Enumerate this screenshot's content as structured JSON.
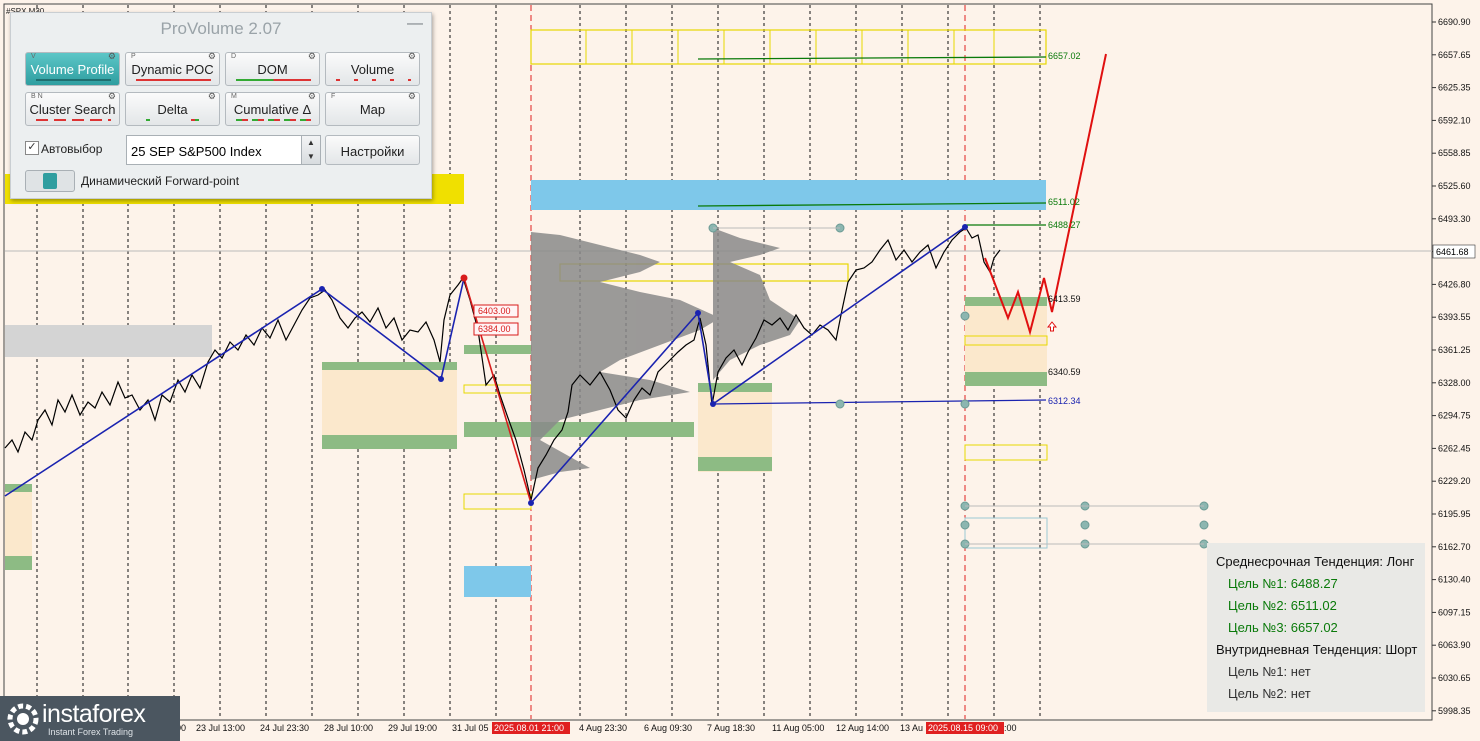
{
  "symbol": "#SPX,M30",
  "panel": {
    "title": "ProVolume 2.07",
    "minimize_glyph": "—",
    "buttons": [
      {
        "tag": "V",
        "label": "Volume Profile",
        "active": true
      },
      {
        "tag": "P",
        "label": "Dynamic POC",
        "active": false
      },
      {
        "tag": "D",
        "label": "DOM",
        "active": false
      },
      {
        "tag": "",
        "label": "Volume",
        "active": false
      },
      {
        "tag": "B N",
        "label": "Cluster Search",
        "active": false
      },
      {
        "tag": "",
        "label": "Delta",
        "active": false
      },
      {
        "tag": "M",
        "label": "Cumulative Δ",
        "active": false
      },
      {
        "tag": "F",
        "label": "Map",
        "active": false
      }
    ],
    "auto_select_label": "Автовыбор",
    "auto_select_checked": true,
    "instrument": "25 SEP S&P500 Index",
    "settings_label": "Настройки",
    "forward_point_label": "Динамический Forward-point",
    "accent_color": "#2f9ea0"
  },
  "price_axis": {
    "ticks": [
      "6690.90",
      "6657.65",
      "6625.35",
      "6592.10",
      "6558.85",
      "6525.60",
      "6493.30",
      "6460.05",
      "6426.80",
      "6393.55",
      "6361.25",
      "6328.00",
      "6294.75",
      "6262.45",
      "6229.20",
      "6195.95",
      "6162.70",
      "6130.40",
      "6097.15",
      "6063.90",
      "6030.65",
      "5998.35"
    ],
    "current_price": "6461.68"
  },
  "time_axis": {
    "labels": [
      "22 Jul 04:00",
      "23 Jul 13:00",
      "24 Jul 23:30",
      "28 Jul 10:00",
      "29 Jul 19:00",
      "31 Jul 05",
      "2025.08.01 21:00",
      "4 Aug 23:30",
      "6 Aug 09:30",
      "7 Aug 18:30",
      "11 Aug 05:00",
      "12 Aug 14:00",
      "13 Au",
      "2025.08.15 09:00",
      ":00"
    ]
  },
  "levels": {
    "l6657": "6657.02",
    "l6511": "6511.02",
    "l6488": "6488.27",
    "l6413": "6413.59",
    "l6340": "6340.59",
    "l6312": "6312.34",
    "l6403": "6403.00",
    "l6384": "6384.00"
  },
  "info": {
    "mid_trend": "Среднесрочная Тенденция: Лонг",
    "mid_target1": "Цель №1: 6488.27",
    "mid_target2": "Цель №2: 6511.02",
    "mid_target3": "Цель №3: 6657.02",
    "intraday_trend": "Внутридневная Тенденция: Шорт",
    "intra_target1": "Цель №1: нет",
    "intra_target2": "Цель №2: нет"
  },
  "logo": {
    "word": "instaforex",
    "tagline": "Instant Forex Trading"
  },
  "colors": {
    "background": "#fdf3ea",
    "trend_line": "#1a23b0",
    "forecast": "#e01010",
    "target_level": "#0a7a0a",
    "zone_blue": "#7ec8ea",
    "zone_green": "#8dbb84",
    "zone_yellow": "#e8d800",
    "zone_light": "#fdebd0",
    "profile_gray": "#8a8a8a"
  }
}
